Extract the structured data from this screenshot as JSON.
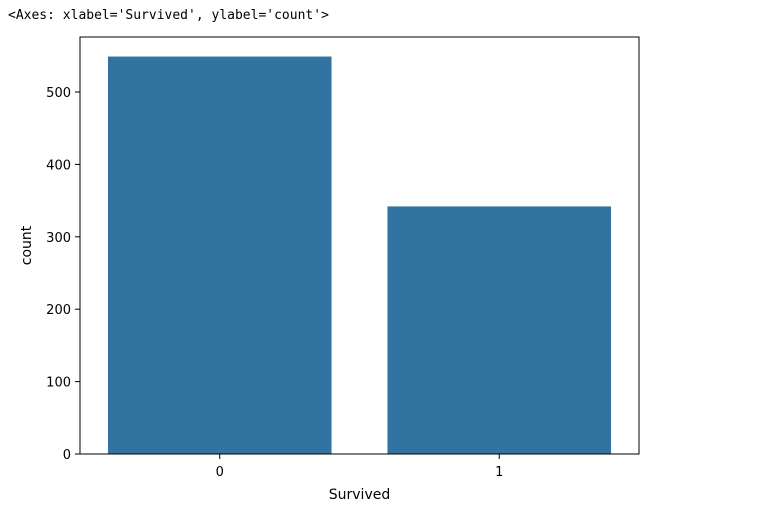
{
  "output": {
    "repr_text": "<Axes: xlabel='Survived', ylabel='count'>"
  },
  "chart_data": {
    "type": "bar",
    "categories": [
      "0",
      "1"
    ],
    "values": [
      549,
      342
    ],
    "xlabel": "Survived",
    "ylabel": "count",
    "ylim": [
      0,
      576
    ],
    "yticks": [
      0,
      100,
      200,
      300,
      400,
      500
    ],
    "bar_color": "#3274a1",
    "grid": false
  }
}
